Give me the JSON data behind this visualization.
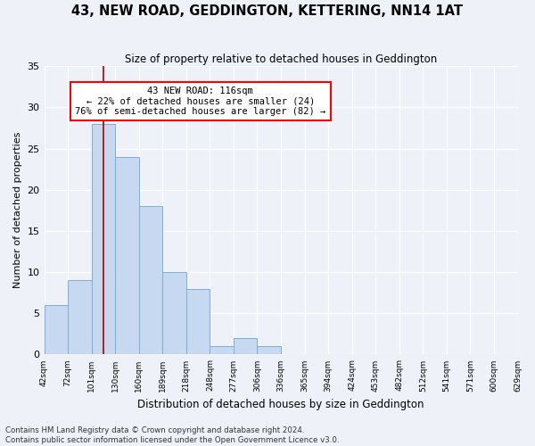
{
  "title": "43, NEW ROAD, GEDDINGTON, KETTERING, NN14 1AT",
  "subtitle": "Size of property relative to detached houses in Geddington",
  "xlabel": "Distribution of detached houses by size in Geddington",
  "ylabel": "Number of detached properties",
  "bar_values": [
    6,
    9,
    28,
    24,
    18,
    10,
    8,
    1,
    2,
    1,
    0,
    0,
    0,
    0,
    0,
    0,
    0,
    0,
    0,
    0
  ],
  "x_labels": [
    "42sqm",
    "72sqm",
    "101sqm",
    "130sqm",
    "160sqm",
    "189sqm",
    "218sqm",
    "248sqm",
    "277sqm",
    "306sqm",
    "336sqm",
    "365sqm",
    "394sqm",
    "424sqm",
    "453sqm",
    "482sqm",
    "512sqm",
    "541sqm",
    "571sqm",
    "600sqm",
    "629sqm"
  ],
  "bar_color": "#c6d9f0",
  "bar_edge_color": "#7bafd4",
  "ylim": [
    0,
    35
  ],
  "yticks": [
    0,
    5,
    10,
    15,
    20,
    25,
    30,
    35
  ],
  "red_line_x": 2.5,
  "annotation_line1": "43 NEW ROAD: 116sqm",
  "annotation_line2": "← 22% of detached houses are smaller (24)",
  "annotation_line3": "76% of semi-detached houses are larger (82) →",
  "footer_text": "Contains HM Land Registry data © Crown copyright and database right 2024.\nContains public sector information licensed under the Open Government Licence v3.0.",
  "background_color": "#eef2f8",
  "grid_color": "#d8e0ee"
}
